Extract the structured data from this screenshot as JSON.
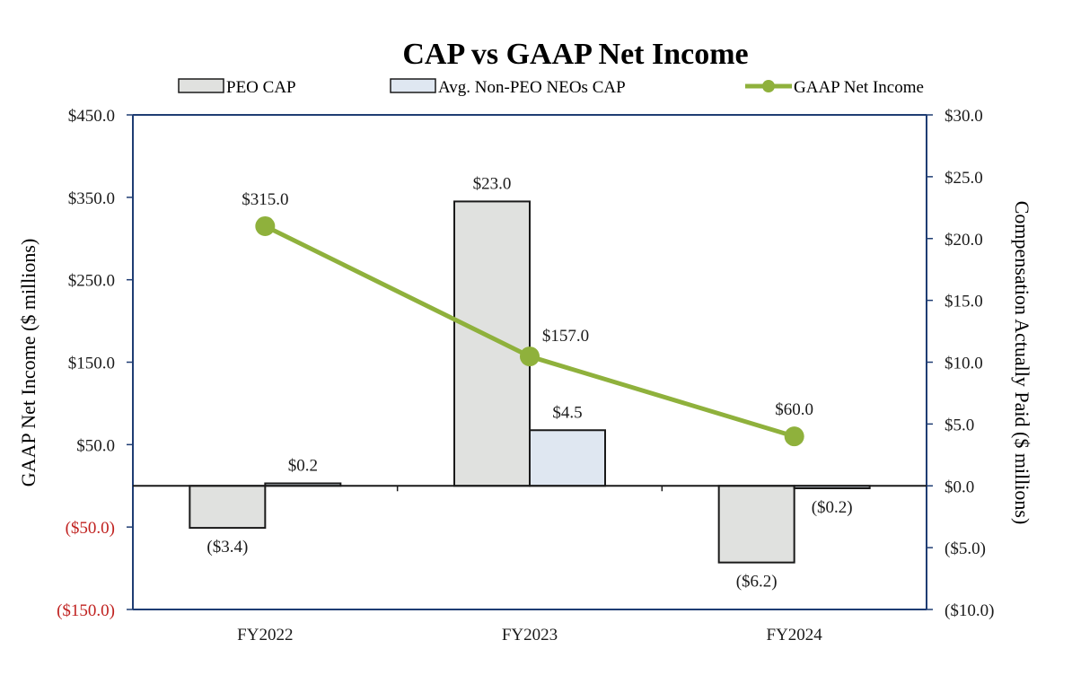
{
  "chart_data": {
    "type": "bar",
    "title": "CAP vs GAAP Net Income",
    "categories": [
      "FY2022",
      "FY2023",
      "FY2024"
    ],
    "series": [
      {
        "name": "PEO CAP",
        "kind": "bar",
        "axis": "right",
        "color": "#e0e1df",
        "values": [
          -3.4,
          23.0,
          -6.2
        ],
        "labels": [
          "($3.4)",
          "$23.0",
          "($6.2)"
        ]
      },
      {
        "name": "Avg. Non-PEO NEOs CAP",
        "kind": "bar",
        "axis": "right",
        "color": "#dfe7f1",
        "values": [
          0.2,
          4.5,
          -0.2
        ],
        "labels": [
          "$0.2",
          "$4.5",
          "($0.2)"
        ]
      },
      {
        "name": "GAAP Net Income",
        "kind": "line",
        "axis": "left",
        "color": "#8fb13c",
        "values": [
          315.0,
          157.0,
          60.0
        ],
        "labels": [
          "$315.0",
          "$157.0",
          "$60.0"
        ]
      }
    ],
    "left_axis": {
      "label": "GAAP Net Income ($ millions)",
      "ylim": [
        -150,
        450
      ],
      "ticks": [
        450,
        350,
        250,
        150,
        50,
        -50,
        -150
      ],
      "tick_labels": [
        "$450.0",
        "$350.0",
        "$250.0",
        "$150.0",
        "$50.0",
        "($50.0)",
        "($150.0)"
      ],
      "negative_color": "#c0211f"
    },
    "right_axis": {
      "label": "Compensation Actually Paid  ($ millions)",
      "ylim": [
        -10,
        30
      ],
      "ticks": [
        30,
        25,
        20,
        15,
        10,
        5,
        0,
        -5,
        -10
      ],
      "tick_labels": [
        "$30.0",
        "$25.0",
        "$20.0",
        "$15.0",
        "$10.0",
        "$5.0",
        "$0.0",
        "($5.0)",
        "($10.0)"
      ]
    },
    "legend_position": "top",
    "axis_color": "#1f3d73"
  }
}
